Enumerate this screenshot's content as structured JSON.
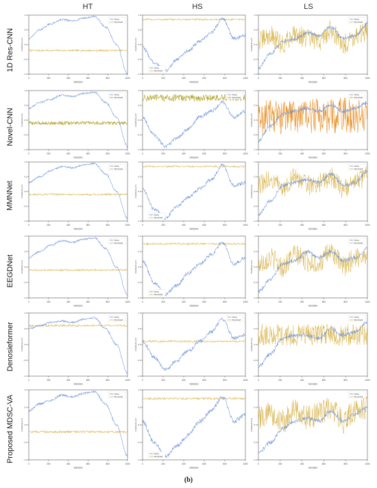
{
  "columns": [
    "HT",
    "HS",
    "LS"
  ],
  "rows": [
    "1D Res-CNN",
    "Novel-CNN",
    "MMNNet",
    "EEGDNet",
    "Denosieformer",
    "Proposed MDSC-VA"
  ],
  "caption": "(b)",
  "colors": {
    "noisy": "#6a8fd8",
    "denoised": "#d8b44a",
    "denoised_dark": "#a89a10",
    "denoised_orange": "#e88a1a"
  },
  "legend": {
    "noisy": "Noisy",
    "denoised": "Denoised"
  },
  "axis": {
    "xlabel": "Samples",
    "ylabel": "Amplitude (uV)"
  },
  "chart_data": [
    {
      "type": "line",
      "column": "HT",
      "row": "1D Res-CNN",
      "x_range": [
        0,
        1000
      ],
      "ylim": [
        -1,
        1
      ],
      "series": [
        {
          "name": "Noisy",
          "values": [
            0.2,
            0.5,
            0.7,
            0.85,
            0.8,
            0.9,
            0.95,
            0.6,
            0.0,
            -1.0
          ]
        },
        {
          "name": "Denoised",
          "values": [
            -0.2,
            -0.2,
            -0.2,
            -0.2,
            -0.2,
            -0.2,
            -0.2,
            -0.2,
            -0.2,
            -0.2
          ]
        }
      ]
    },
    {
      "type": "line",
      "column": "HS",
      "row": "1D Res-CNN",
      "x_range": [
        0,
        1000
      ],
      "ylim": [
        -1,
        1
      ],
      "series": [
        {
          "name": "Noisy",
          "values": [
            -0.1,
            -0.6,
            -0.9,
            -0.5,
            -0.2,
            0.1,
            0.4,
            0.9,
            0.2,
            0.3
          ]
        },
        {
          "name": "Denoised",
          "values": [
            0.85,
            0.85,
            0.85,
            0.85,
            0.85,
            0.85,
            0.85,
            0.85,
            0.85,
            0.85
          ]
        }
      ]
    },
    {
      "type": "line",
      "column": "LS",
      "row": "1D Res-CNN",
      "x_range": [
        0,
        1000
      ],
      "ylim": [
        -1,
        1
      ],
      "series": [
        {
          "name": "Noisy",
          "values": [
            -0.8,
            -0.3,
            0.1,
            0.2,
            0.4,
            0.3,
            0.6,
            0.2,
            0.3,
            0.7
          ]
        },
        {
          "name": "Denoised",
          "values": [
            0.1,
            0.3,
            0.0,
            0.4,
            0.2,
            0.1,
            0.5,
            0.0,
            0.3,
            0.4
          ]
        }
      ]
    },
    {
      "type": "line",
      "column": "HT",
      "row": "Novel-CNN",
      "x_range": [
        0,
        1000
      ],
      "ylim": [
        -1,
        1
      ],
      "series": [
        {
          "name": "Noisy",
          "values": [
            0.4,
            0.6,
            0.7,
            0.85,
            0.8,
            0.9,
            0.95,
            0.6,
            0.1,
            -0.9
          ]
        },
        {
          "name": "Denoised",
          "values": [
            -0.1,
            -0.1,
            -0.1,
            -0.1,
            -0.1,
            -0.1,
            -0.1,
            -0.1,
            -0.1,
            -0.1
          ]
        }
      ]
    },
    {
      "type": "line",
      "column": "HS",
      "row": "Novel-CNN",
      "x_range": [
        0,
        1000
      ],
      "ylim": [
        -1,
        1
      ],
      "series": [
        {
          "name": "Noisy",
          "values": [
            0.1,
            -0.5,
            -0.9,
            -0.6,
            -0.3,
            0.1,
            0.3,
            0.6,
            0.1,
            0.3
          ]
        },
        {
          "name": "Denoised",
          "values": [
            0.75,
            0.75,
            0.75,
            0.75,
            0.75,
            0.75,
            0.75,
            0.75,
            0.75,
            0.75
          ]
        }
      ]
    },
    {
      "type": "line",
      "column": "LS",
      "row": "Novel-CNN",
      "x_range": [
        0,
        1000
      ],
      "ylim": [
        -1,
        1
      ],
      "series": [
        {
          "name": "Noisy",
          "values": [
            -0.7,
            -0.2,
            0.2,
            0.3,
            0.4,
            0.3,
            0.5,
            0.3,
            0.4,
            0.6
          ]
        },
        {
          "name": "Denoised",
          "values": [
            0.0,
            0.2,
            0.1,
            0.2,
            0.1,
            0.2,
            0.1,
            0.2,
            0.1,
            0.2
          ]
        }
      ]
    },
    {
      "type": "line",
      "column": "HT",
      "row": "MMNNet",
      "x_range": [
        0,
        1000
      ],
      "ylim": [
        -1,
        1
      ],
      "series": [
        {
          "name": "Noisy",
          "values": [
            0.3,
            0.5,
            0.7,
            0.85,
            0.8,
            0.9,
            0.95,
            0.6,
            0.0,
            -0.9
          ]
        },
        {
          "name": "Denoised",
          "values": [
            -0.1,
            -0.1,
            -0.1,
            -0.1,
            -0.1,
            -0.1,
            -0.1,
            -0.1,
            -0.1,
            -0.1
          ]
        }
      ]
    },
    {
      "type": "line",
      "column": "HS",
      "row": "MMNNet",
      "x_range": [
        0,
        1000
      ],
      "ylim": [
        -1,
        1
      ],
      "series": [
        {
          "name": "Noisy",
          "values": [
            0.1,
            -0.6,
            -0.9,
            -0.5,
            -0.2,
            0.1,
            0.4,
            0.9,
            0.2,
            0.3
          ]
        },
        {
          "name": "Denoised",
          "values": [
            0.85,
            0.85,
            0.85,
            0.85,
            0.85,
            0.85,
            0.85,
            0.85,
            0.85,
            0.85
          ]
        }
      ]
    },
    {
      "type": "line",
      "column": "LS",
      "row": "MMNNet",
      "x_range": [
        0,
        1000
      ],
      "ylim": [
        -1,
        1
      ],
      "series": [
        {
          "name": "Noisy",
          "values": [
            -0.8,
            -0.3,
            0.2,
            0.3,
            0.4,
            0.3,
            0.6,
            0.2,
            0.3,
            0.7
          ]
        },
        {
          "name": "Denoised",
          "values": [
            0.2,
            0.4,
            0.1,
            0.5,
            0.2,
            0.3,
            0.5,
            0.1,
            0.3,
            0.5
          ]
        }
      ]
    },
    {
      "type": "line",
      "column": "HT",
      "row": "EEGDNet",
      "x_range": [
        0,
        1000
      ],
      "ylim": [
        -1,
        1
      ],
      "series": [
        {
          "name": "Noisy",
          "values": [
            0.3,
            0.5,
            0.7,
            0.85,
            0.8,
            0.9,
            0.95,
            0.6,
            0.0,
            -0.9
          ]
        },
        {
          "name": "Denoised",
          "values": [
            -0.1,
            -0.1,
            -0.1,
            -0.1,
            -0.1,
            -0.1,
            -0.1,
            -0.1,
            -0.1,
            -0.1
          ]
        }
      ]
    },
    {
      "type": "line",
      "column": "HS",
      "row": "EEGDNet",
      "x_range": [
        0,
        1000
      ],
      "ylim": [
        -1,
        1
      ],
      "series": [
        {
          "name": "Noisy",
          "values": [
            0.2,
            -0.5,
            -0.9,
            -0.6,
            -0.2,
            0.1,
            0.4,
            0.8,
            0.1,
            0.3
          ]
        },
        {
          "name": "Denoised",
          "values": [
            0.75,
            0.75,
            0.75,
            0.75,
            0.75,
            0.75,
            0.75,
            0.75,
            0.75,
            0.75
          ]
        }
      ]
    },
    {
      "type": "line",
      "column": "LS",
      "row": "EEGDNet",
      "x_range": [
        0,
        1000
      ],
      "ylim": [
        -1,
        1
      ],
      "series": [
        {
          "name": "Noisy",
          "values": [
            -0.8,
            -0.4,
            0.1,
            0.2,
            0.5,
            0.3,
            0.5,
            0.2,
            0.3,
            0.6
          ]
        },
        {
          "name": "Denoised",
          "values": [
            0.1,
            0.3,
            0.0,
            0.4,
            0.2,
            0.1,
            0.5,
            0.0,
            0.3,
            0.4
          ]
        }
      ]
    },
    {
      "type": "line",
      "column": "HT",
      "row": "Denosieformer",
      "x_range": [
        0,
        1000
      ],
      "ylim": [
        -1,
        1
      ],
      "series": [
        {
          "name": "Noisy",
          "values": [
            0.5,
            0.6,
            0.7,
            0.75,
            0.7,
            0.8,
            0.85,
            0.5,
            0.0,
            -0.9
          ]
        },
        {
          "name": "Denoised",
          "values": [
            0.6,
            0.6,
            0.6,
            0.6,
            0.6,
            0.6,
            0.6,
            0.6,
            0.6,
            0.6
          ]
        }
      ]
    },
    {
      "type": "line",
      "column": "HS",
      "row": "Denosieformer",
      "x_range": [
        0,
        1000
      ],
      "ylim": [
        -1,
        1
      ],
      "series": [
        {
          "name": "Noisy",
          "values": [
            0.1,
            -0.4,
            -0.8,
            -0.5,
            -0.2,
            0.1,
            0.4,
            0.8,
            0.2,
            0.3
          ]
        },
        {
          "name": "Denoised",
          "values": [
            0.1,
            0.1,
            0.1,
            0.1,
            0.1,
            0.1,
            0.1,
            0.1,
            0.1,
            0.1
          ]
        }
      ]
    },
    {
      "type": "line",
      "column": "LS",
      "row": "Denosieformer",
      "x_range": [
        0,
        1000
      ],
      "ylim": [
        -1,
        1
      ],
      "series": [
        {
          "name": "Noisy",
          "values": [
            -0.7,
            -0.3,
            0.2,
            0.3,
            0.3,
            0.2,
            0.5,
            0.3,
            0.4,
            0.7
          ]
        },
        {
          "name": "Denoised",
          "values": [
            0.3,
            0.3,
            0.3,
            0.3,
            0.3,
            0.3,
            0.3,
            0.3,
            0.3,
            0.3
          ]
        }
      ]
    },
    {
      "type": "line",
      "column": "HT",
      "row": "Proposed MDSC-VA",
      "x_range": [
        0,
        1000
      ],
      "ylim": [
        -1,
        1
      ],
      "series": [
        {
          "name": "Noisy",
          "values": [
            0.4,
            0.6,
            0.7,
            0.85,
            0.8,
            0.9,
            0.95,
            0.6,
            0.0,
            -0.9
          ]
        },
        {
          "name": "Denoised",
          "values": [
            -0.2,
            -0.2,
            -0.2,
            -0.2,
            -0.2,
            -0.2,
            -0.2,
            -0.2,
            -0.2,
            -0.2
          ]
        }
      ]
    },
    {
      "type": "line",
      "column": "HS",
      "row": "Proposed MDSC-VA",
      "x_range": [
        0,
        1000
      ],
      "ylim": [
        -1,
        1
      ],
      "series": [
        {
          "name": "Noisy",
          "values": [
            0.1,
            -0.5,
            -0.9,
            -0.6,
            -0.3,
            0.1,
            0.4,
            0.8,
            0.1,
            0.3
          ]
        },
        {
          "name": "Denoised",
          "values": [
            0.75,
            0.75,
            0.75,
            0.75,
            0.75,
            0.75,
            0.75,
            0.75,
            0.75,
            0.75
          ]
        }
      ]
    },
    {
      "type": "line",
      "column": "LS",
      "row": "Proposed MDSC-VA",
      "x_range": [
        0,
        1000
      ],
      "ylim": [
        -1,
        1
      ],
      "series": [
        {
          "name": "Noisy",
          "values": [
            -0.8,
            -0.5,
            -0.1,
            0.1,
            0.2,
            0.1,
            0.4,
            0.1,
            0.3,
            0.5
          ]
        },
        {
          "name": "Denoised",
          "values": [
            0.2,
            0.3,
            0.1,
            0.4,
            0.2,
            0.3,
            0.5,
            0.1,
            0.4,
            0.5
          ]
        }
      ]
    }
  ]
}
